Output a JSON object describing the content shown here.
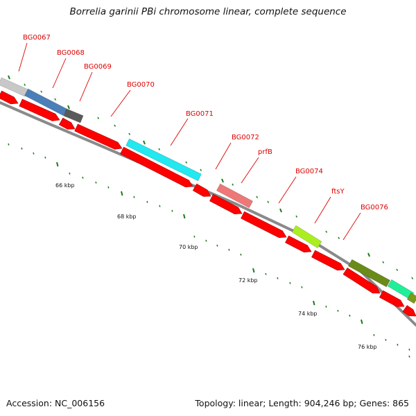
{
  "title": "Borrelia garinii PBi chromosome linear, complete sequence",
  "footer": {
    "accession": "Accession: NC_006156",
    "topology": "Topology: linear; Length: 904,246 bp; Genes: 865"
  },
  "colors": {
    "cds": "#ff0000",
    "backbone": "#8a8a8a",
    "label": "#dd0000",
    "tick": "#1a7a1a"
  },
  "ruler": [
    {
      "label": "66 kbp"
    },
    {
      "label": "68 kbp"
    },
    {
      "label": "70 kbp"
    },
    {
      "label": "72 kbp"
    },
    {
      "label": "74 kbp"
    },
    {
      "label": "76 kbp"
    }
  ],
  "gene_labels": [
    {
      "name": "BG0067"
    },
    {
      "name": "BG0068"
    },
    {
      "name": "BG0069"
    },
    {
      "name": "BG0070"
    },
    {
      "name": "BG0071"
    },
    {
      "name": "BG0072"
    },
    {
      "name": "prfB"
    },
    {
      "name": "BG0074"
    },
    {
      "name": "ftsY"
    },
    {
      "name": "BG0076"
    }
  ],
  "feature_colors": [
    {
      "color": "#c8c8c8"
    },
    {
      "color": "#4a7fb8"
    },
    {
      "color": "#5a5a5a"
    },
    {
      "color": "#22e8f0"
    },
    {
      "color": "#ee7777"
    },
    {
      "color": "#aaee22"
    },
    {
      "color": "#6a8a1a"
    },
    {
      "color": "#22ee99"
    },
    {
      "color": "#7a9a1a"
    }
  ]
}
